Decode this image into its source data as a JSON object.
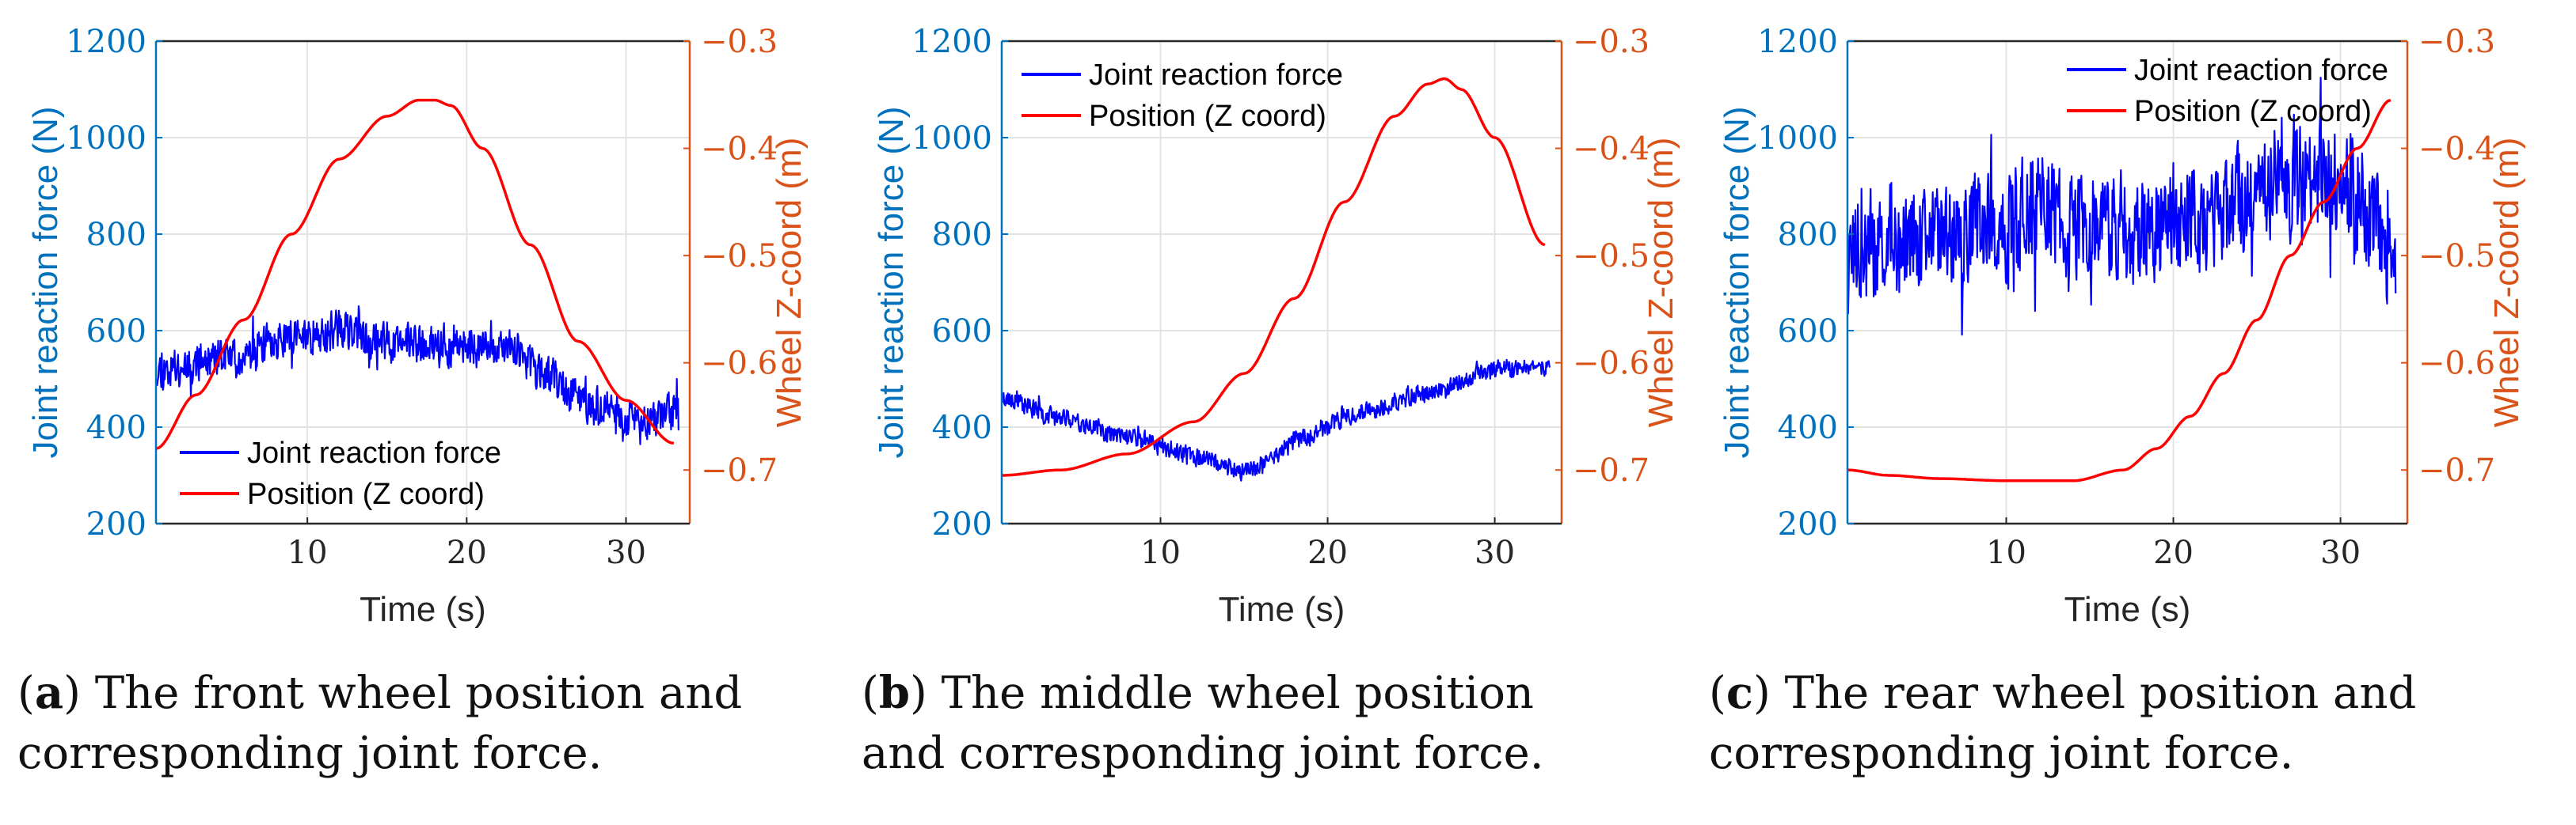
{
  "colors": {
    "force": "#0000FF",
    "position": "#FF0000",
    "left_axis": "#0072BD",
    "right_axis": "#D95319",
    "grid": "#e3e3e3"
  },
  "chart_data": [
    {
      "id": "a",
      "type": "line",
      "xlabel": "Time (s)",
      "ylabel_left": "Joint reaction force (N)",
      "ylabel_right": "Wheel Z-coord (m)",
      "xlim": [
        0.5,
        34
      ],
      "ylim_left": [
        200,
        1200
      ],
      "ylim_right": [
        -0.75,
        -0.3
      ],
      "xticks": [
        10,
        20,
        30
      ],
      "yticks_left": [
        200,
        400,
        600,
        800,
        1000,
        1200
      ],
      "yticks_right": [
        -0.7,
        -0.6,
        -0.5,
        -0.4,
        -0.3
      ],
      "ytick_labels_right": [
        "−0.7",
        "−0.6",
        "−0.5",
        "−0.4",
        "−0.3"
      ],
      "legend": {
        "position": "bottom-left",
        "entries": [
          "Joint reaction force",
          "Position (Z coord)"
        ]
      },
      "series": [
        {
          "name": "Joint reaction force",
          "axis": "left",
          "noise": 45,
          "seed": 11,
          "x": [
            0.5,
            5,
            10,
            12,
            15,
            20,
            23,
            25,
            28,
            31,
            33
          ],
          "y": [
            520,
            545,
            590,
            600,
            575,
            565,
            560,
            505,
            440,
            405,
            430
          ]
        },
        {
          "name": "Position (Z coord)",
          "axis": "right",
          "x": [
            0.5,
            3,
            6,
            9,
            12,
            15,
            17,
            18,
            19,
            21,
            24,
            27,
            30,
            33
          ],
          "y": [
            -0.68,
            -0.63,
            -0.56,
            -0.48,
            -0.41,
            -0.37,
            -0.355,
            -0.355,
            -0.36,
            -0.4,
            -0.49,
            -0.58,
            -0.635,
            -0.675
          ]
        }
      ]
    },
    {
      "id": "b",
      "type": "line",
      "xlabel": "Time (s)",
      "ylabel_left": "Joint reaction force (N)",
      "ylabel_right": "Wheel Z-coord (m)",
      "xlim": [
        0.5,
        34
      ],
      "ylim_left": [
        200,
        1200
      ],
      "ylim_right": [
        -0.75,
        -0.3
      ],
      "xticks": [
        10,
        20,
        30
      ],
      "yticks_left": [
        200,
        400,
        600,
        800,
        1000,
        1200
      ],
      "yticks_right": [
        -0.7,
        -0.6,
        -0.5,
        -0.4,
        -0.3
      ],
      "ytick_labels_right": [
        "−0.7",
        "−0.6",
        "−0.5",
        "−0.4",
        "−0.3"
      ],
      "legend": {
        "position": "top-left",
        "entries": [
          "Joint reaction force",
          "Position (Z coord)"
        ]
      },
      "series": [
        {
          "name": "Joint reaction force",
          "axis": "left",
          "noise": 22,
          "seed": 23,
          "x": [
            0.5,
            4,
            8,
            12,
            15,
            16,
            18,
            22,
            26,
            30,
            33
          ],
          "y": [
            460,
            420,
            380,
            340,
            310,
            320,
            375,
            430,
            470,
            520,
            530
          ]
        },
        {
          "name": "Position (Z coord)",
          "axis": "right",
          "x": [
            0.5,
            4,
            8,
            12,
            15,
            18,
            21,
            24,
            26,
            27,
            28,
            30,
            33
          ],
          "y": [
            -0.705,
            -0.7,
            -0.685,
            -0.655,
            -0.61,
            -0.54,
            -0.45,
            -0.37,
            -0.34,
            -0.335,
            -0.345,
            -0.39,
            -0.49
          ]
        }
      ]
    },
    {
      "id": "c",
      "type": "line",
      "xlabel": "Time (s)",
      "ylabel_left": "Joint reaction force (N)",
      "ylabel_right": "Wheel Z-coord (m)",
      "xlim": [
        0.5,
        34
      ],
      "ylim_left": [
        200,
        1200
      ],
      "ylim_right": [
        -0.75,
        -0.3
      ],
      "xticks": [
        10,
        20,
        30
      ],
      "yticks_left": [
        200,
        400,
        600,
        800,
        1000,
        1200
      ],
      "yticks_right": [
        -0.7,
        -0.6,
        -0.5,
        -0.4,
        -0.3
      ],
      "ytick_labels_right": [
        "−0.7",
        "−0.6",
        "−0.5",
        "−0.4",
        "−0.3"
      ],
      "legend": {
        "position": "top-right",
        "entries": [
          "Joint reaction force",
          "Position (Z coord)"
        ]
      },
      "series": [
        {
          "name": "Joint reaction force",
          "axis": "left",
          "noise": 130,
          "seed": 37,
          "x": [
            0.5,
            5,
            10,
            12,
            15,
            20,
            25,
            28,
            30,
            32,
            33
          ],
          "y": [
            760,
            790,
            820,
            840,
            810,
            810,
            880,
            920,
            910,
            830,
            760
          ]
        },
        {
          "name": "Position (Z coord)",
          "axis": "right",
          "x": [
            0.5,
            3,
            6,
            10,
            14,
            17,
            19,
            21,
            23,
            25,
            27,
            29,
            31,
            33
          ],
          "y": [
            -0.7,
            -0.705,
            -0.708,
            -0.71,
            -0.71,
            -0.7,
            -0.68,
            -0.65,
            -0.61,
            -0.56,
            -0.5,
            -0.45,
            -0.4,
            -0.355
          ]
        }
      ]
    }
  ],
  "captions": [
    {
      "label": "a",
      "line1": " The front wheel position and",
      "line2": "corresponding joint force."
    },
    {
      "label": "b",
      "line1": " The middle wheel position",
      "line2": "and corresponding joint force."
    },
    {
      "label": "c",
      "line1": " The rear wheel position and",
      "line2": "corresponding joint force."
    }
  ]
}
